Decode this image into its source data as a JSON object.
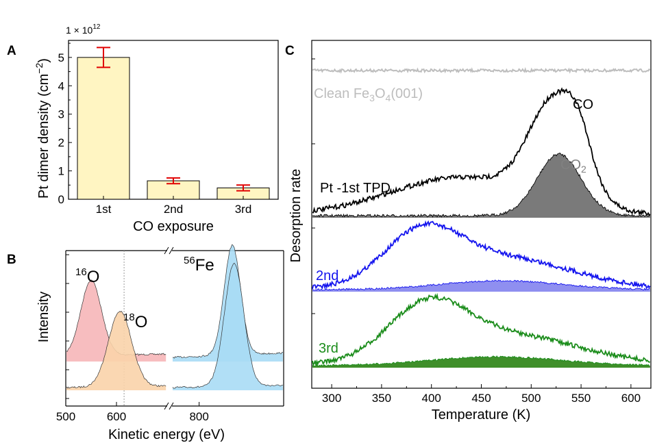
{
  "panels": {
    "a": "A",
    "b": "B",
    "c": "C"
  },
  "chart_data": [
    {
      "id": "A",
      "type": "bar",
      "categories": [
        "1st",
        "2nd",
        "3rd"
      ],
      "values": [
        5.0,
        0.65,
        0.4
      ],
      "errors": [
        0.35,
        0.1,
        0.1
      ],
      "ylim": [
        0,
        5.6
      ],
      "yticks": [
        0,
        1,
        2,
        3,
        4,
        5
      ],
      "y_multiplier": "1 × 10",
      "y_multiplier_exp": "12",
      "ylabel": "Pt dimer density (cm",
      "ylabel_exp": "−2",
      "ylabel_close": ")",
      "xlabel": "CO exposure",
      "bar_color": "#fff5c2",
      "error_color": "#e00000"
    },
    {
      "id": "B",
      "type": "area",
      "xlabel": "Kinetic energy (eV)",
      "ylabel": "Intensity",
      "xticks": [
        500,
        600,
        800
      ],
      "segments": [
        [
          500,
          700
        ],
        [
          755,
          940
        ]
      ],
      "marker_x": 615,
      "peak_labels": [
        {
          "mass": "16",
          "element": "O",
          "color": "#f6b6b8"
        },
        {
          "mass": "18",
          "element": "O",
          "color": "#f9d3aa"
        },
        {
          "mass": "56",
          "element": "Fe",
          "color": "#a8dcf5"
        }
      ]
    },
    {
      "id": "C",
      "type": "line",
      "xlabel": "Temperature (K)",
      "ylabel": "Desorption rate",
      "xlim": [
        280,
        620
      ],
      "xticks": [
        300,
        350,
        400,
        450,
        500,
        550,
        600
      ],
      "series": [
        {
          "name": "Clean Fe",
          "sub": "3",
          "tail": "O",
          "sub2": "4",
          "tail2": "(001)",
          "color": "#bdbdbd"
        },
        {
          "name": "Pt -1st TPD",
          "color": "#000000"
        },
        {
          "name": "2nd",
          "color": "#1414ee"
        },
        {
          "name": "3rd",
          "color": "#1a8c1a"
        }
      ],
      "labels": {
        "co": "CO",
        "co2": "CO",
        "co2_sub": "2"
      }
    }
  ]
}
